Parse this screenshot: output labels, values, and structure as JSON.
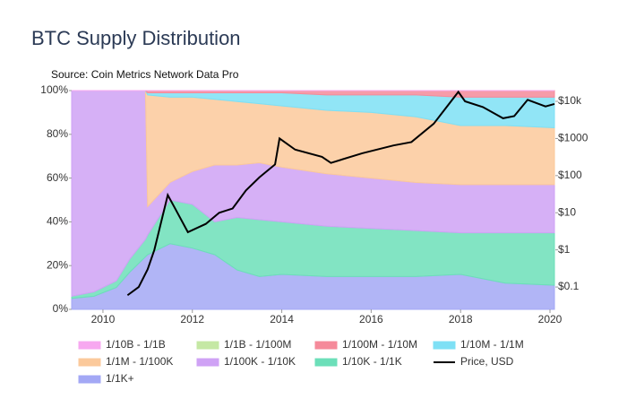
{
  "chart_data": {
    "type": "stacked_area",
    "title": "BTC Supply Distribution",
    "subtitle": "Source: Coin Metrics Network Data Pro",
    "x": [
      2009.3,
      2009.8,
      2010.3,
      2010.6,
      2010.95,
      2011.0,
      2011.5,
      2012.0,
      2012.5,
      2013.0,
      2013.5,
      2014.0,
      2015.0,
      2016.0,
      2017.0,
      2018.0,
      2019.0,
      2020.1
    ],
    "xlim": [
      2009.3,
      2020.12
    ],
    "xticks": [
      2010,
      2012,
      2014,
      2016,
      2018,
      2020
    ],
    "ylim": [
      0,
      100
    ],
    "yticks": [
      {
        "value": 0,
        "label": "0%"
      },
      {
        "value": 20,
        "label": "20%"
      },
      {
        "value": 40,
        "label": "40%"
      },
      {
        "value": 60,
        "label": "60%"
      },
      {
        "value": 80,
        "label": "80%"
      },
      {
        "value": 100,
        "label": "100%"
      }
    ],
    "y2lim": [
      0.025,
      19500
    ],
    "y2log": true,
    "y2ticks": [
      {
        "value": 0.1,
        "label": "$0.1"
      },
      {
        "value": 1,
        "label": "$1"
      },
      {
        "value": 10,
        "label": "$10"
      },
      {
        "value": 100,
        "label": "$100"
      },
      {
        "value": 1000,
        "label": "$1000"
      },
      {
        "value": 10000,
        "label": "$10k"
      }
    ],
    "series": [
      {
        "name": "1/1K+",
        "color": "#a3a8f5",
        "values": [
          5,
          6,
          10,
          17,
          24,
          25,
          30,
          28,
          25,
          18,
          15,
          16,
          15,
          15,
          15,
          16,
          12,
          11
        ]
      },
      {
        "name": "1/10K - 1/1K",
        "color": "#6cdfb9",
        "values": [
          1,
          2,
          3,
          6,
          8,
          9,
          20,
          20,
          15,
          24,
          26,
          24,
          23,
          22,
          21,
          19,
          23,
          24
        ]
      },
      {
        "name": "1/100K - 1/10K",
        "color": "#cfa2f5",
        "values": [
          94,
          92,
          87,
          77,
          68,
          13,
          8,
          15,
          26,
          24,
          26,
          25,
          24,
          23,
          22,
          22,
          22,
          22
        ]
      },
      {
        "name": "1/1M - 1/100K",
        "color": "#fbc99b",
        "values": [
          0,
          0,
          0,
          0,
          0,
          51,
          39,
          34,
          30,
          29,
          27,
          28,
          29,
          30,
          30,
          27,
          27,
          26
        ]
      },
      {
        "name": "1/10M - 1/1M",
        "color": "#7ee0f5",
        "values": [
          0,
          0,
          0,
          0,
          0,
          1,
          2,
          2,
          3,
          4,
          5,
          6,
          7,
          8,
          10,
          13,
          13,
          14
        ]
      },
      {
        "name": "1/100M - 1/10M",
        "color": "#f58a9a",
        "values": [
          0,
          0,
          0,
          0,
          0,
          1,
          1,
          1,
          1,
          1,
          1,
          1,
          2,
          2,
          2,
          3,
          3,
          3
        ]
      },
      {
        "name": "1/1B - 1/100M",
        "color": "#c5e8a4",
        "values": [
          0,
          0,
          0,
          0,
          0,
          0,
          0,
          0,
          0,
          0,
          0,
          0,
          0,
          0,
          0,
          0,
          0,
          0
        ]
      },
      {
        "name": "1/10B - 1/1B",
        "color": "#f7a8f0",
        "values": [
          0,
          0,
          0,
          0,
          0,
          0,
          0,
          0,
          0,
          0,
          0,
          0,
          0,
          0,
          0,
          0,
          0,
          0
        ]
      },
      {
        "name": "Price, USD",
        "color": "#000000",
        "axis": "y2",
        "x": [
          2010.55,
          2010.8,
          2011.0,
          2011.15,
          2011.45,
          2011.6,
          2011.9,
          2012.3,
          2012.6,
          2012.9,
          2013.2,
          2013.5,
          2013.85,
          2013.95,
          2014.3,
          2014.9,
          2015.1,
          2015.8,
          2016.5,
          2016.9,
          2017.4,
          2017.95,
          2018.1,
          2018.5,
          2018.95,
          2019.2,
          2019.5,
          2019.9,
          2020.1
        ],
        "values": [
          0.06,
          0.1,
          0.3,
          1,
          30,
          14,
          3,
          5,
          10,
          13,
          40,
          90,
          200,
          1000,
          500,
          320,
          220,
          400,
          650,
          800,
          2500,
          18000,
          10000,
          7000,
          3500,
          4000,
          11000,
          7300,
          8500
        ]
      }
    ],
    "legend_order": [
      7,
      6,
      5,
      4,
      3,
      2,
      1,
      8,
      0
    ]
  }
}
